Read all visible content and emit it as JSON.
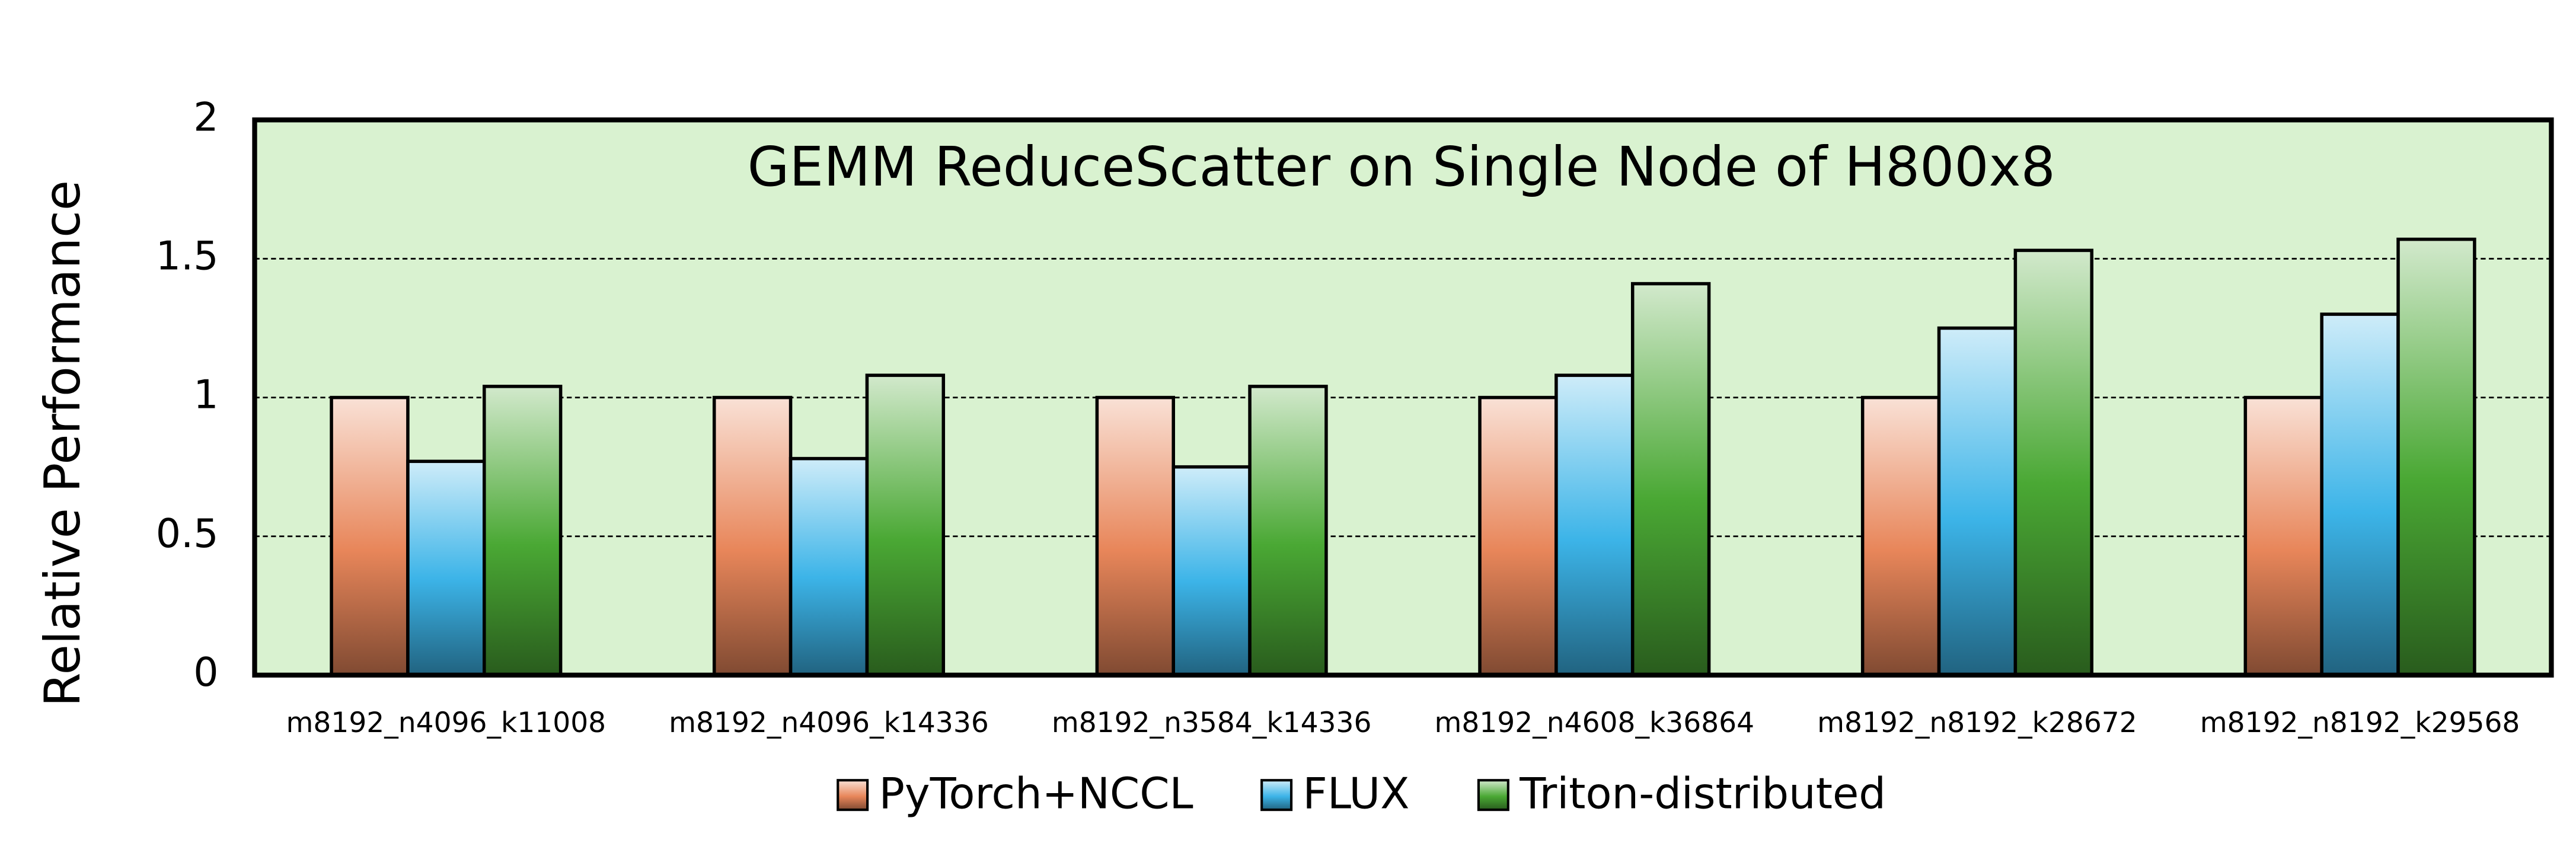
{
  "chart_data": {
    "type": "bar",
    "title": "GEMM ReduceScatter on Single Node of H800x8",
    "y_label": "Relative Performance",
    "categories": [
      "m8192_n4096_k11008",
      "m8192_n4096_k14336",
      "m8192_n3584_k14336",
      "m8192_n4608_k36864",
      "m8192_n8192_k28672",
      "m8192_n8192_k29568"
    ],
    "series": [
      {
        "name": "PyTorch+NCCL",
        "color": "#e8865a",
        "values": [
          1,
          1,
          1,
          1,
          1,
          1
        ]
      },
      {
        "name": "FLUX",
        "color": "#3cb4e8",
        "values": [
          0.77,
          0.78,
          0.75,
          1.08,
          1.25,
          1.3
        ]
      },
      {
        "name": "Triton-distributed",
        "color": "#4aa834",
        "values": [
          1.04,
          1.08,
          1.04,
          1.41,
          1.53,
          1.57
        ]
      }
    ],
    "ylim": [
      0,
      2
    ],
    "yticks": [
      0,
      0.5,
      1,
      1.5,
      2
    ],
    "grid": true,
    "background": "#d9f2d0"
  }
}
